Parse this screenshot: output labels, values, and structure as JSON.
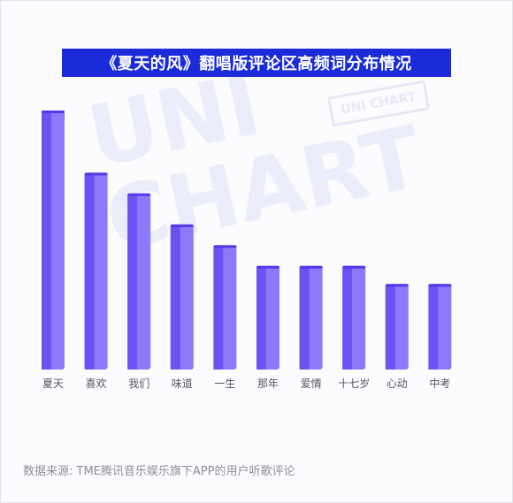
{
  "title": "《夏天的风》翻唱版评论区高频词分布情况",
  "footer": "数据来源: TME腾讯音乐娱乐旗下APP的用户听歌评论",
  "watermark": {
    "big": "UNI CHART",
    "stamp": "UNI CHART"
  },
  "colors": {
    "title_bg": "#1a2bd9",
    "bar_main": "#8e79fb",
    "bar_side": "#6c52f2",
    "bar_top": "#5538e8"
  },
  "chart_data": {
    "type": "bar",
    "categories": [
      "夏天",
      "喜欢",
      "我们",
      "味道",
      "一生",
      "那年",
      "爱情",
      "十七岁",
      "心动",
      "中考"
    ],
    "values": [
      100,
      76,
      68,
      56,
      48,
      40,
      40,
      40,
      33,
      33
    ],
    "ylim": [
      0,
      100
    ],
    "grid": false,
    "legend": "none"
  }
}
